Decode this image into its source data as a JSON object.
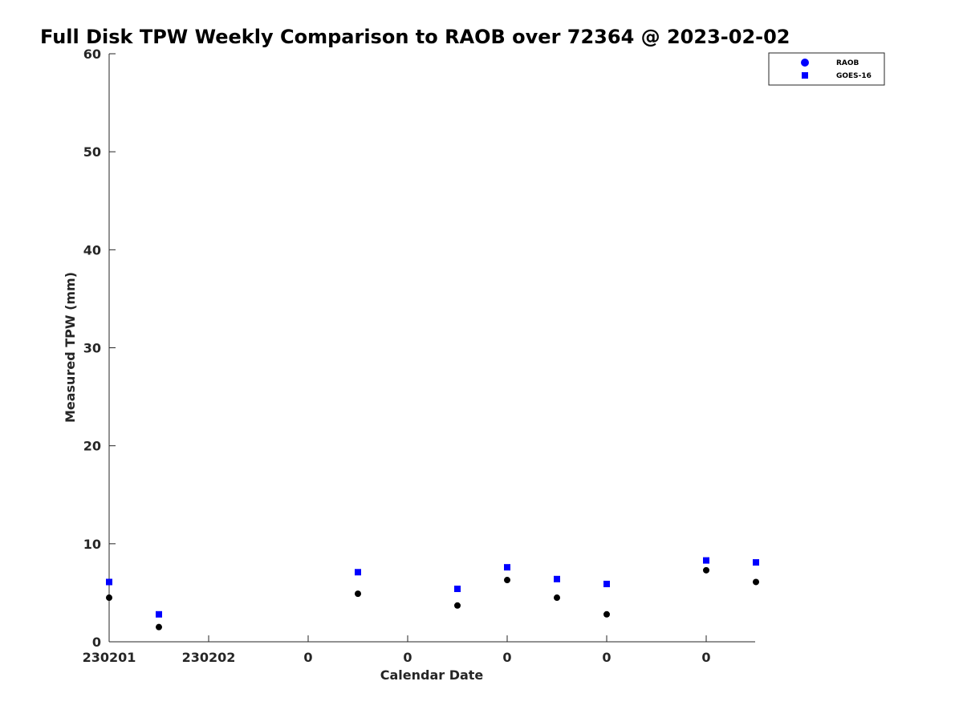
{
  "chart_data": {
    "type": "scatter",
    "title": "Full Disk TPW Weekly Comparison to RAOB over 72364 @ 2023-02-02",
    "xlabel": "Calendar Date",
    "ylabel": "Measured TPW (mm)",
    "ylim": [
      0,
      60
    ],
    "yticks": [
      0,
      10,
      20,
      30,
      40,
      50,
      60
    ],
    "xlim": [
      0,
      6.5
    ],
    "xticks": [
      0,
      1,
      2,
      3,
      4,
      5,
      6
    ],
    "xtick_labels": [
      "230201",
      "230202",
      "0",
      "0",
      "0",
      "0",
      "0"
    ],
    "grid": false,
    "legend_position": "top-right",
    "legend": [
      {
        "name": "RAOB",
        "marker": "circle",
        "color": "#0000ff"
      },
      {
        "name": "GOES-16",
        "marker": "square",
        "color": "#0000ff"
      }
    ],
    "series": [
      {
        "name": "RAOB",
        "marker": "circle",
        "color": "#000000",
        "x": [
          0,
          0.5,
          2.5,
          3.5,
          4.0,
          4.5,
          5.0,
          6.0,
          6.5
        ],
        "y": [
          4.5,
          1.5,
          4.9,
          3.7,
          6.3,
          4.5,
          2.8,
          7.3,
          6.1
        ]
      },
      {
        "name": "GOES-16",
        "marker": "square",
        "color": "#0000ff",
        "x": [
          0,
          0.5,
          2.5,
          3.5,
          4.0,
          4.5,
          5.0,
          6.0,
          6.5
        ],
        "y": [
          6.1,
          2.8,
          7.1,
          5.4,
          7.6,
          6.4,
          5.9,
          8.3,
          8.1
        ]
      }
    ]
  }
}
